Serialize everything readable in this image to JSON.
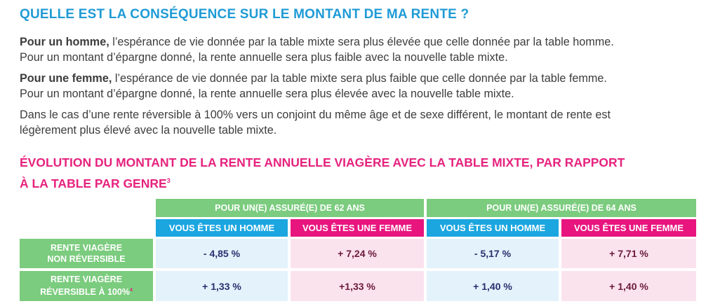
{
  "section_title": "QUELLE EST LA CONSÉQUENCE SUR LE MONTANT DE MA RENTE ?",
  "paragraphs": [
    {
      "lead": "Pour un homme,",
      "line1": " l’espérance de vie donnée par la table mixte sera plus élevée que celle donnée par la table homme.",
      "line2": "Pour un montant d’épargne donné, la rente annuelle sera plus faible avec la nouvelle table mixte."
    },
    {
      "lead": "Pour une femme,",
      "line1": " l’espérance de vie donnée par la table mixte sera plus faible que celle donnée par la table femme.",
      "line2": "Pour un montant d’épargne donné, la rente annuelle sera plus élevée avec la nouvelle table mixte."
    },
    {
      "line1": "Dans le cas d’une rente réversible à 100% vers un conjoint du même âge et de sexe différent, le montant de rente est",
      "line2": "légèrement plus élevé avec la nouvelle table mixte."
    }
  ],
  "table_title": {
    "line1": "ÉVOLUTION DU MONTANT DE LA RENTE ANNUELLE VIAGÈRE AVEC LA TABLE MIXTE, PAR RAPPORT",
    "line2": "À LA TABLE PAR GENRE",
    "note": "3"
  },
  "table": {
    "groups": [
      "POUR UN(E) ASSURÉ(E) DE 62 ANS",
      "POUR UN(E) ASSURÉ(E) DE 64 ANS"
    ],
    "subheaders": [
      "VOUS ÊTES UN HOMME",
      "VOUS ÊTES UNE FEMME",
      "VOUS ÊTES UN HOMME",
      "VOUS ÊTES UNE FEMME"
    ],
    "rows": [
      {
        "label_line1": "RENTE VIAGÈRE",
        "label_line2": "NON RÉVERSIBLE",
        "note": "",
        "values": [
          "- 4,85 %",
          "+ 7,24 %",
          "- 5,17 %",
          "+ 7,71 %"
        ]
      },
      {
        "label_line1": "RENTE VIAGÈRE",
        "label_line2": "RÉVERSIBLE À 100%",
        "note": "4",
        "values": [
          "+ 1,33 %",
          "+1,33 %",
          "+ 1,40 %",
          "+ 1,40 %"
        ]
      }
    ]
  },
  "colors": {
    "title_blue": "#1f9bd6",
    "title_pink": "#e6227e",
    "green": "#7bcc7e",
    "blue": "#1ba6e0",
    "pink": "#e8157f",
    "light_blue": "#e3f2fb",
    "light_pink": "#fbe3ee"
  }
}
